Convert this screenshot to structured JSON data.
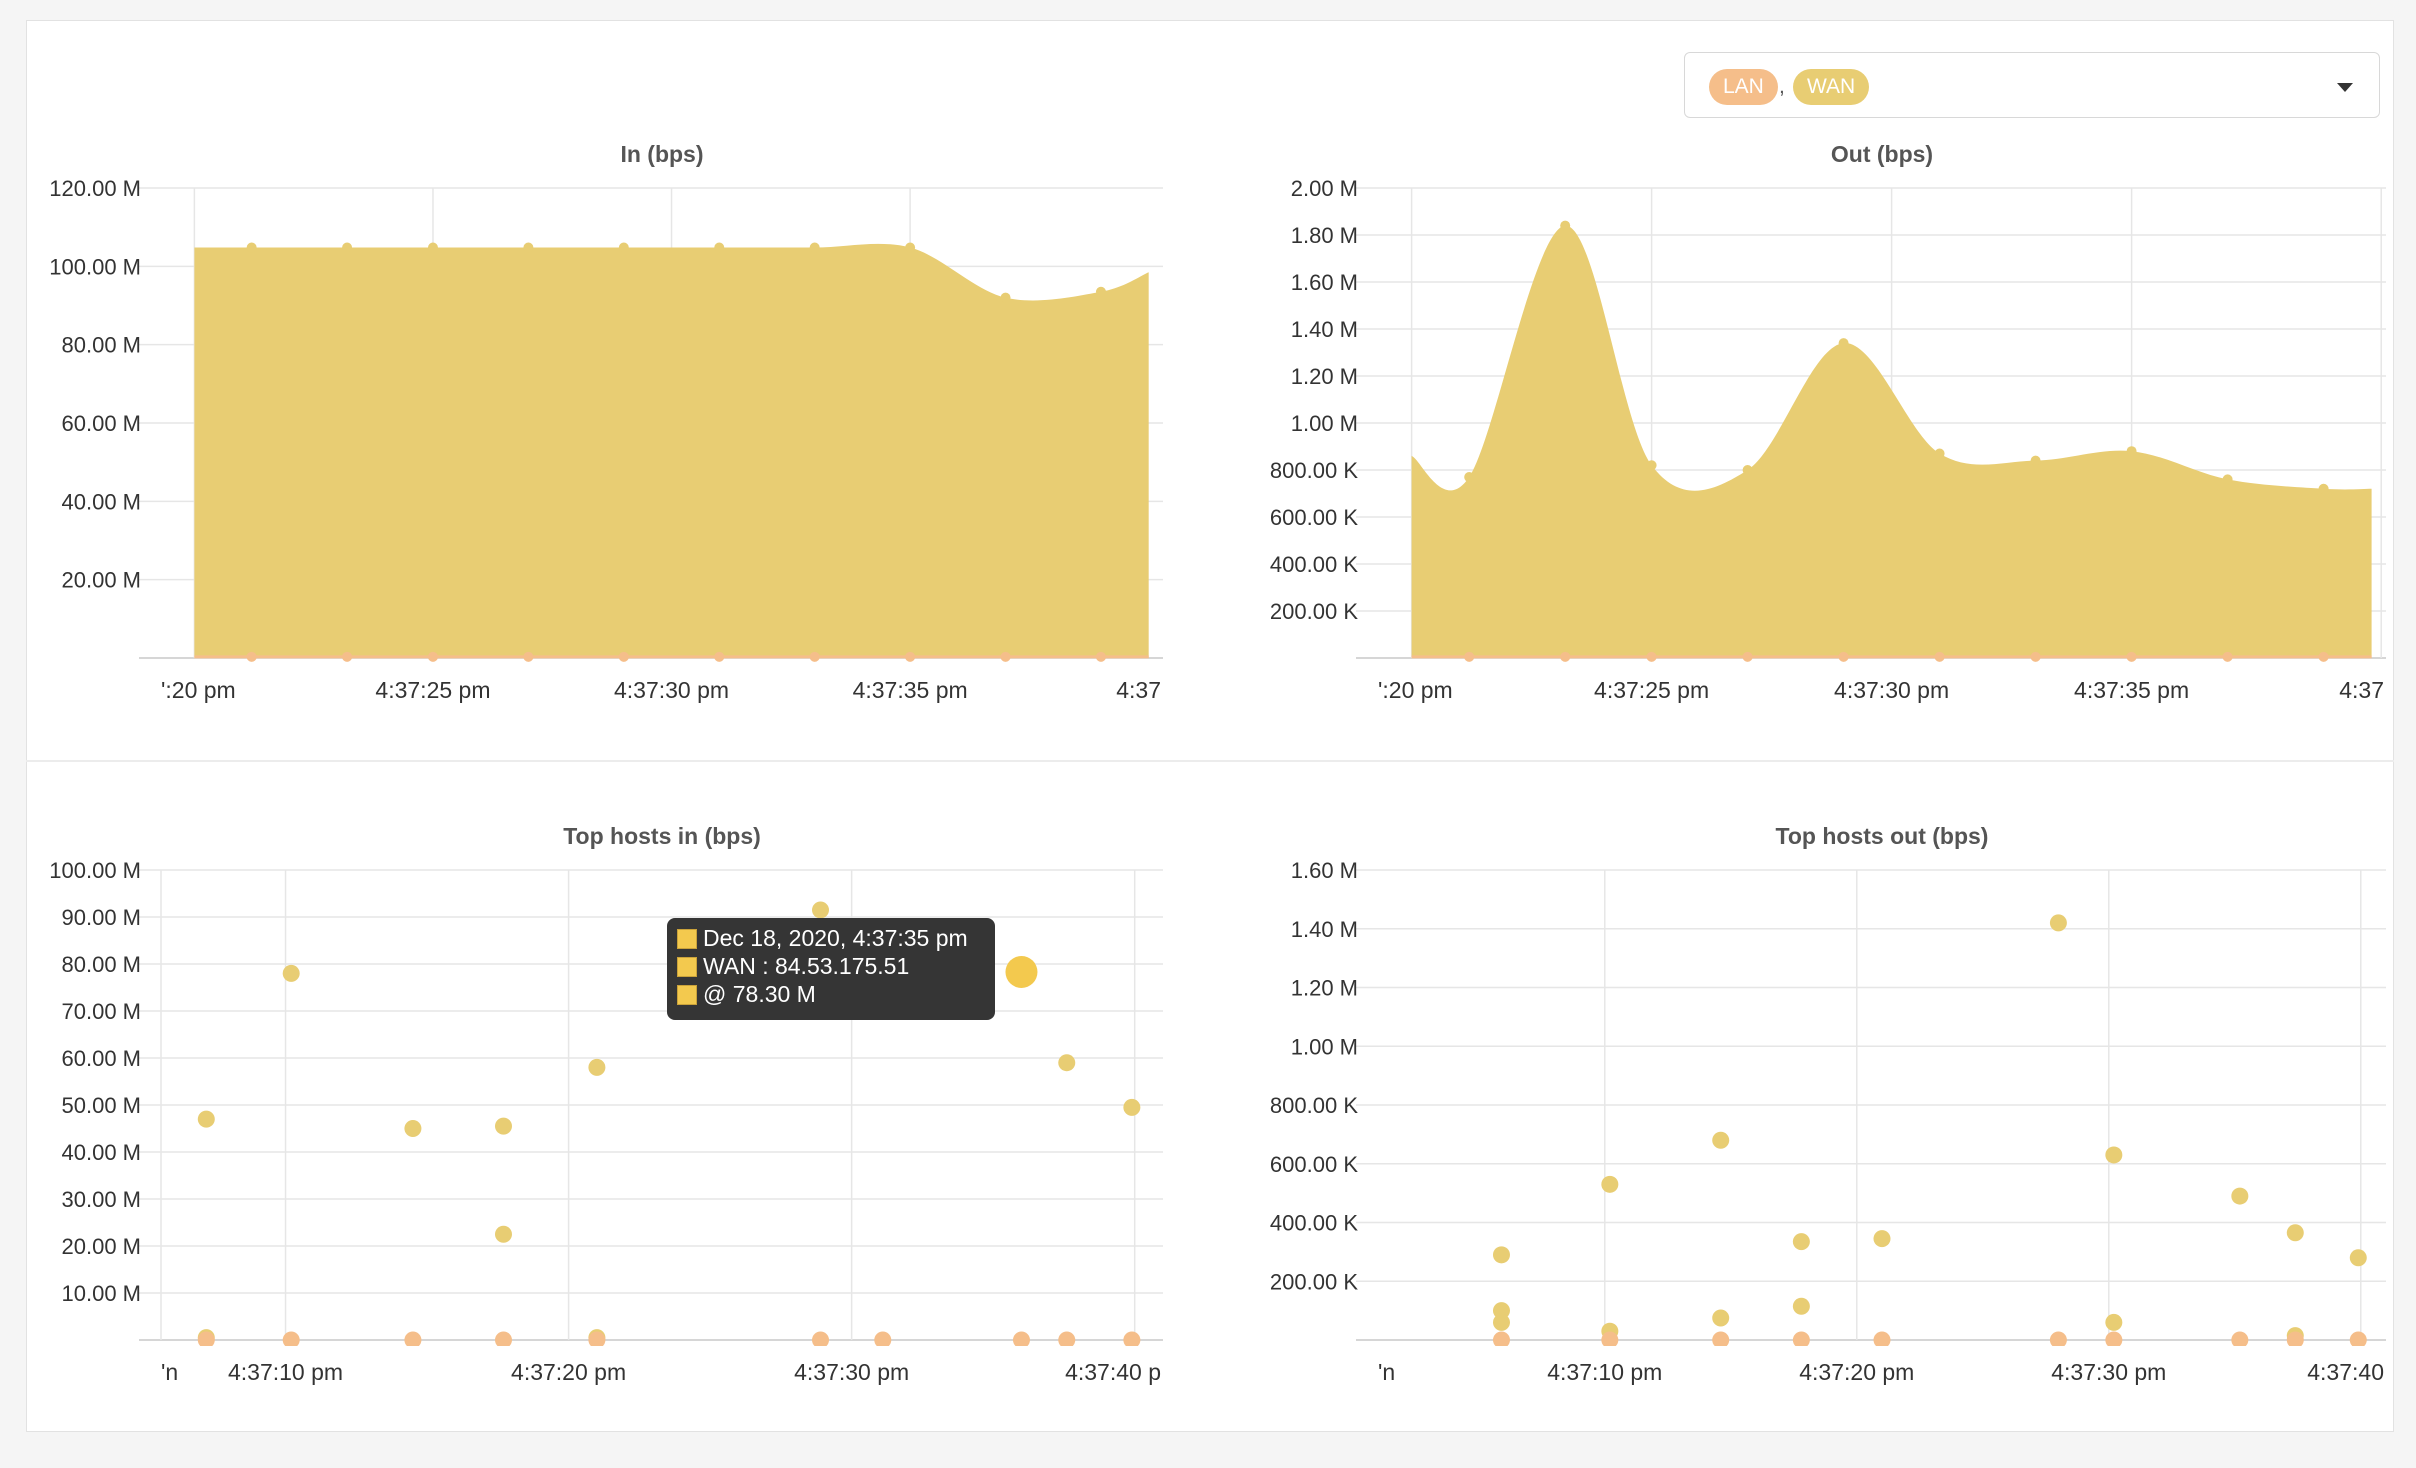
{
  "selector": {
    "tags": [
      "LAN",
      "WAN"
    ],
    "separator": ",",
    "caret_icon": "caret-down-icon"
  },
  "colors": {
    "lan": "#f5be8a",
    "wan": "#e8cd73",
    "tooltip_bg": "#353535",
    "highlight": "#f3c94e"
  },
  "tooltip": {
    "line1": "Dec 18, 2020, 4:37:35 pm",
    "line2": "WAN : 84.53.175.51",
    "line3": "@ 78.30 M"
  },
  "chart_data": [
    {
      "type": "area",
      "title": "In (bps)",
      "xlabel": "",
      "ylabel": "",
      "x_ticks": [
        "':20 pm",
        "4:37:25 pm",
        "4:37:30 pm",
        "4:37:35 pm",
        "4:37"
      ],
      "y_ticks": [
        "",
        "20.00 M",
        "40.00 M",
        "60.00 M",
        "80.00 M",
        "100.00 M",
        "120.00 M"
      ],
      "ylim": [
        0,
        120
      ],
      "y_unit": "M",
      "grid": true,
      "series": [
        {
          "name": "WAN",
          "x": [
            20.0,
            21.2,
            23.2,
            25.0,
            27.0,
            29.0,
            31.0,
            33.0,
            35.0,
            37.0,
            39.0,
            40.0
          ],
          "values": [
            104.8,
            104.8,
            104.8,
            104.8,
            104.8,
            104.8,
            104.8,
            104.8,
            104.8,
            92.0,
            93.5,
            98.5
          ]
        },
        {
          "name": "LAN",
          "x": [
            20.0,
            21.2,
            23.2,
            25.0,
            27.0,
            29.0,
            31.0,
            33.0,
            35.0,
            37.0,
            39.0,
            40.0
          ],
          "values": [
            0.3,
            0.3,
            0.3,
            0.3,
            0.3,
            0.3,
            0.3,
            0.3,
            0.3,
            0.3,
            0.3,
            0.3
          ]
        }
      ]
    },
    {
      "type": "area",
      "title": "Out (bps)",
      "xlabel": "",
      "ylabel": "",
      "x_ticks": [
        "':20 pm",
        "4:37:25 pm",
        "4:37:30 pm",
        "4:37:35 pm",
        "4:37"
      ],
      "y_ticks": [
        "",
        "200.00 K",
        "400.00 K",
        "600.00 K",
        "800.00 K",
        "1.00 M",
        "1.20 M",
        "1.40 M",
        "1.60 M",
        "1.80 M",
        "2.00 M"
      ],
      "ylim": [
        0,
        2000
      ],
      "y_unit": "K",
      "grid": true,
      "series": [
        {
          "name": "WAN",
          "x": [
            20.0,
            21.2,
            23.2,
            25.0,
            27.0,
            29.0,
            31.0,
            33.0,
            35.0,
            37.0,
            39.0,
            40.0
          ],
          "values": [
            860,
            770,
            1840,
            820,
            800,
            1340,
            870,
            840,
            880,
            760,
            720,
            720
          ]
        },
        {
          "name": "LAN",
          "x": [
            20.0,
            21.2,
            23.2,
            25.0,
            27.0,
            29.0,
            31.0,
            33.0,
            35.0,
            37.0,
            39.0,
            40.0
          ],
          "values": [
            5,
            5,
            5,
            5,
            5,
            5,
            5,
            5,
            5,
            5,
            5,
            5
          ]
        }
      ]
    },
    {
      "type": "scatter",
      "title": "Top hosts in (bps)",
      "xlabel": "",
      "ylabel": "",
      "x_ticks": [
        "'n",
        "4:37:10 pm",
        "4:37:20 pm",
        "4:37:30 pm",
        "4:37:40 p"
      ],
      "y_ticks": [
        "",
        "10.00 M",
        "20.00 M",
        "30.00 M",
        "40.00 M",
        "50.00 M",
        "60.00 M",
        "70.00 M",
        "80.00 M",
        "90.00 M",
        "100.00 M"
      ],
      "ylim": [
        0,
        100
      ],
      "y_unit": "M",
      "grid": true,
      "series": [
        {
          "name": "WAN",
          "points": [
            [
              7.2,
              47.0
            ],
            [
              10.2,
              78.0
            ],
            [
              14.5,
              45.0
            ],
            [
              17.7,
              45.5
            ],
            [
              17.7,
              22.5
            ],
            [
              21.0,
              58.0
            ],
            [
              28.9,
              91.5
            ],
            [
              36.0,
              78.3
            ],
            [
              37.6,
              59.0
            ],
            [
              39.9,
              49.5
            ],
            [
              7.2,
              0.5
            ],
            [
              21.0,
              0.5
            ]
          ]
        },
        {
          "name": "LAN",
          "points": [
            [
              7.2,
              0
            ],
            [
              10.2,
              0
            ],
            [
              14.5,
              0
            ],
            [
              17.7,
              0
            ],
            [
              21.0,
              0
            ],
            [
              28.9,
              0
            ],
            [
              31.1,
              0
            ],
            [
              36.0,
              0
            ],
            [
              37.6,
              0
            ],
            [
              39.9,
              0
            ]
          ]
        }
      ],
      "highlight": [
        36.0,
        78.3
      ]
    },
    {
      "type": "scatter",
      "title": "Top hosts out (bps)",
      "xlabel": "",
      "ylabel": "",
      "x_ticks": [
        "'n",
        "4:37:10 pm",
        "4:37:20 pm",
        "4:37:30 pm",
        "4:37:40"
      ],
      "y_ticks": [
        "",
        "200.00 K",
        "400.00 K",
        "600.00 K",
        "800.00 K",
        "1.00 M",
        "1.20 M",
        "1.40 M",
        "1.60 M"
      ],
      "ylim": [
        0,
        1600
      ],
      "y_unit": "K",
      "grid": true,
      "series": [
        {
          "name": "WAN",
          "points": [
            [
              5.9,
              290
            ],
            [
              5.9,
              100
            ],
            [
              5.9,
              60
            ],
            [
              10.2,
              530
            ],
            [
              10.2,
              30
            ],
            [
              14.6,
              680
            ],
            [
              14.6,
              75
            ],
            [
              17.8,
              335
            ],
            [
              17.8,
              115
            ],
            [
              21.0,
              345
            ],
            [
              28.0,
              1420
            ],
            [
              30.2,
              630
            ],
            [
              30.2,
              60
            ],
            [
              35.2,
              490
            ],
            [
              37.4,
              365
            ],
            [
              39.9,
              280
            ],
            [
              37.4,
              15
            ]
          ]
        },
        {
          "name": "LAN",
          "points": [
            [
              5.9,
              0
            ],
            [
              10.2,
              0
            ],
            [
              14.6,
              0
            ],
            [
              17.8,
              0
            ],
            [
              21.0,
              0
            ],
            [
              28.0,
              0
            ],
            [
              30.2,
              0
            ],
            [
              35.2,
              0
            ],
            [
              37.4,
              0
            ],
            [
              39.9,
              0
            ]
          ]
        }
      ]
    }
  ]
}
